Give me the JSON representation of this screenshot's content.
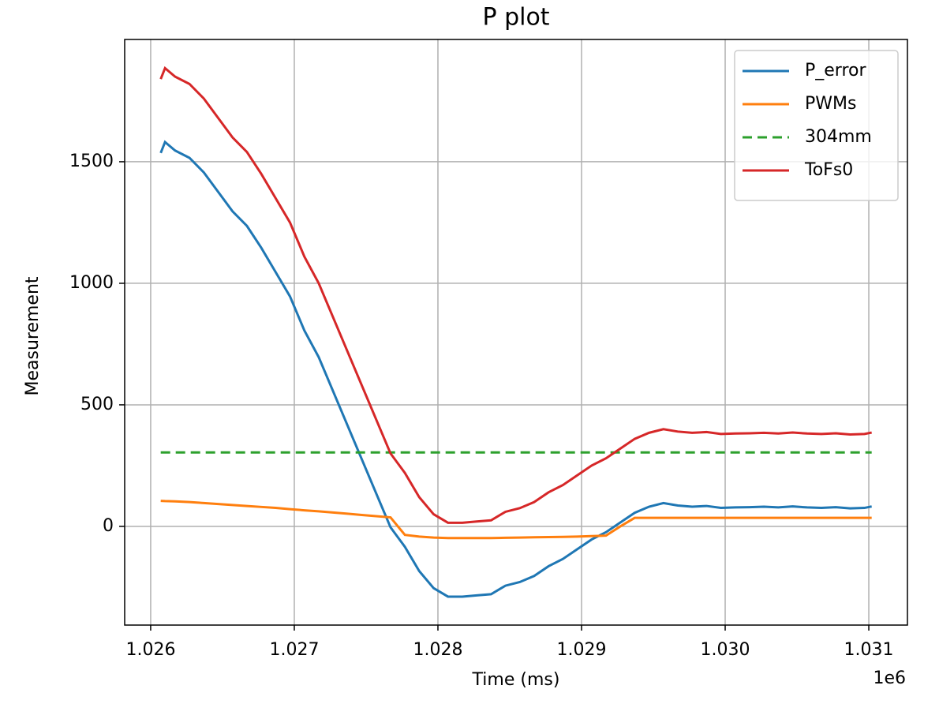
{
  "chart_data": {
    "type": "line",
    "title": "P plot",
    "xlabel": "Time (ms)",
    "ylabel": "Measurement",
    "x_offset_label": "1e6",
    "x": [
      1026070,
      1026100,
      1026170,
      1026270,
      1026370,
      1026470,
      1026570,
      1026670,
      1026770,
      1026870,
      1026970,
      1027070,
      1027170,
      1027270,
      1027370,
      1027470,
      1027570,
      1027670,
      1027770,
      1027870,
      1027970,
      1028070,
      1028170,
      1028270,
      1028370,
      1028470,
      1028570,
      1028670,
      1028770,
      1028870,
      1028970,
      1029070,
      1029170,
      1029270,
      1029370,
      1029470,
      1029570,
      1029670,
      1029770,
      1029870,
      1029970,
      1030070,
      1030170,
      1030270,
      1030370,
      1030470,
      1030570,
      1030670,
      1030770,
      1030870,
      1030970,
      1031020
    ],
    "series": [
      {
        "name": "P_error",
        "color": "#1f77b4",
        "linestyle": "solid",
        "values": [
          1536,
          1581,
          1546,
          1516,
          1456,
          1376,
          1296,
          1236,
          1146,
          1046,
          946,
          806,
          696,
          556,
          416,
          276,
          136,
          -4,
          -84,
          -184,
          -254,
          -289,
          -289,
          -284,
          -279,
          -244,
          -229,
          -204,
          -164,
          -134,
          -94,
          -54,
          -24,
          16,
          56,
          81,
          96,
          86,
          81,
          84,
          76,
          78,
          79,
          81,
          78,
          82,
          78,
          76,
          79,
          74,
          76,
          82
        ]
      },
      {
        "name": "PWMs",
        "color": "#ff7f0e",
        "linestyle": "solid",
        "values": [
          105,
          104,
          103,
          100,
          96,
          92,
          88,
          84,
          80,
          76,
          71,
          66,
          62,
          57,
          52,
          47,
          42,
          37,
          -35,
          -42,
          -46,
          -48,
          -48,
          -48,
          -48,
          -47,
          -46,
          -45,
          -44,
          -43,
          -42,
          -40,
          -38,
          0,
          35,
          35,
          35,
          35,
          35,
          35,
          35,
          35,
          35,
          35,
          35,
          35,
          35,
          35,
          35,
          35,
          35,
          35
        ]
      },
      {
        "name": "304mm",
        "color": "#2ca02c",
        "linestyle": "dashed",
        "values": [
          304,
          304,
          304,
          304,
          304,
          304,
          304,
          304,
          304,
          304,
          304,
          304,
          304,
          304,
          304,
          304,
          304,
          304,
          304,
          304,
          304,
          304,
          304,
          304,
          304,
          304,
          304,
          304,
          304,
          304,
          304,
          304,
          304,
          304,
          304,
          304,
          304,
          304,
          304,
          304,
          304,
          304,
          304,
          304,
          304,
          304,
          304,
          304,
          304,
          304,
          304,
          304
        ]
      },
      {
        "name": "ToFs0",
        "color": "#d62728",
        "linestyle": "solid",
        "values": [
          1840,
          1885,
          1850,
          1820,
          1760,
          1680,
          1600,
          1540,
          1450,
          1350,
          1250,
          1110,
          1000,
          860,
          720,
          580,
          440,
          300,
          220,
          120,
          50,
          15,
          15,
          20,
          25,
          60,
          75,
          100,
          140,
          170,
          210,
          250,
          280,
          320,
          360,
          385,
          400,
          390,
          385,
          388,
          380,
          382,
          383,
          385,
          382,
          386,
          382,
          380,
          383,
          378,
          380,
          386
        ]
      }
    ],
    "xlim": [
      1025819,
      1031269
    ],
    "ylim": [
      -406,
      2003
    ],
    "xticks": [
      {
        "value": 1026000,
        "label": "1.026"
      },
      {
        "value": 1027000,
        "label": "1.027"
      },
      {
        "value": 1028000,
        "label": "1.028"
      },
      {
        "value": 1029000,
        "label": "1.029"
      },
      {
        "value": 1030000,
        "label": "1.030"
      },
      {
        "value": 1031000,
        "label": "1.031"
      }
    ],
    "yticks": [
      0,
      500,
      1000,
      1500
    ],
    "grid": true,
    "legend": "upper right"
  }
}
